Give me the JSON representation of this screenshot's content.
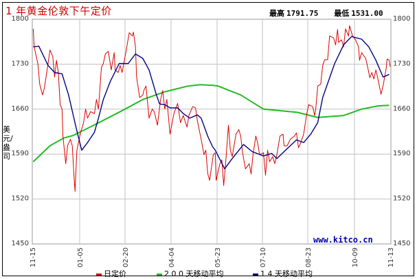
{
  "header": {
    "title": "1 年黄金伦敦下午定价",
    "high_label": "最高",
    "high_value": "1791.75",
    "low_label": "最低",
    "low_value": "1531.00"
  },
  "watermark": "www.kitco.cn",
  "chart_data": {
    "type": "line",
    "title": "1 年黄金伦敦下午定价",
    "ylabel": "美元/盎司",
    "xlabel": "",
    "ylim": [
      1450,
      1800
    ],
    "yticks": [
      "1800",
      "1730",
      "1660",
      "1590",
      "1520",
      "1450"
    ],
    "xticks": [
      "11-15",
      "01-05",
      "02-20",
      "04-04",
      "05-23",
      "07-10",
      "08-23",
      "10-09",
      "11-13"
    ],
    "grid": true,
    "legend_position": "bottom",
    "colors": {
      "daily": "#dd0000",
      "ma200": "#22bb22",
      "ma14": "#000080",
      "grid": "#c0c0c0"
    },
    "series": [
      {
        "name": "日定价",
        "key": "daily",
        "points": [
          [
            "11-16",
            1785
          ],
          [
            "11-17",
            1757
          ],
          [
            "11-21",
            1731
          ],
          [
            "11-23",
            1699
          ],
          [
            "11-26",
            1682
          ],
          [
            "11-28",
            1693
          ],
          [
            "12-02",
            1731
          ],
          [
            "12-04",
            1752
          ],
          [
            "12-07",
            1742
          ],
          [
            "12-09",
            1710
          ],
          [
            "12-11",
            1736
          ],
          [
            "12-13",
            1717
          ],
          [
            "12-15",
            1667
          ],
          [
            "12-17",
            1660
          ],
          [
            "12-18",
            1618
          ],
          [
            "12-21",
            1575
          ],
          [
            "12-23",
            1603
          ],
          [
            "12-26",
            1613
          ],
          [
            "12-28",
            1603
          ],
          [
            "12-30",
            1553
          ],
          [
            "12-31",
            1532
          ],
          [
            "01-02",
            1596
          ],
          [
            "01-04",
            1610
          ],
          [
            "01-06",
            1624
          ],
          [
            "01-09",
            1639
          ],
          [
            "01-11",
            1660
          ],
          [
            "01-13",
            1646
          ],
          [
            "01-16",
            1656
          ],
          [
            "01-20",
            1653
          ],
          [
            "01-22",
            1675
          ],
          [
            "01-24",
            1660
          ],
          [
            "01-27",
            1725
          ],
          [
            "01-29",
            1731
          ],
          [
            "01-31",
            1746
          ],
          [
            "02-03",
            1750
          ],
          [
            "02-05",
            1731
          ],
          [
            "02-06",
            1721
          ],
          [
            "02-09",
            1748
          ],
          [
            "02-10",
            1721
          ],
          [
            "02-13",
            1717
          ],
          [
            "02-15",
            1728
          ],
          [
            "02-17",
            1717
          ],
          [
            "02-21",
            1750
          ],
          [
            "02-24",
            1779
          ],
          [
            "02-27",
            1774
          ],
          [
            "02-28",
            1780
          ],
          [
            "03-01",
            1757
          ],
          [
            "03-02",
            1710
          ],
          [
            "03-05",
            1678
          ],
          [
            "03-08",
            1682
          ],
          [
            "03-09",
            1689
          ],
          [
            "03-11",
            1696
          ],
          [
            "03-14",
            1646
          ],
          [
            "03-17",
            1660
          ],
          [
            "03-19",
            1656
          ],
          [
            "03-22",
            1635
          ],
          [
            "03-25",
            1675
          ],
          [
            "03-27",
            1689
          ],
          [
            "03-29",
            1660
          ],
          [
            "03-31",
            1675
          ],
          [
            "04-03",
            1621
          ],
          [
            "04-07",
            1653
          ],
          [
            "04-11",
            1669
          ],
          [
            "04-14",
            1639
          ],
          [
            "04-17",
            1650
          ],
          [
            "04-21",
            1632
          ],
          [
            "04-23",
            1650
          ],
          [
            "04-27",
            1664
          ],
          [
            "04-30",
            1662
          ],
          [
            "05-02",
            1642
          ],
          [
            "05-06",
            1613
          ],
          [
            "05-09",
            1589
          ],
          [
            "05-11",
            1596
          ],
          [
            "05-13",
            1560
          ],
          [
            "05-15",
            1549
          ],
          [
            "05-19",
            1589
          ],
          [
            "05-21",
            1592
          ],
          [
            "05-22",
            1549
          ],
          [
            "05-26",
            1575
          ],
          [
            "05-28",
            1581
          ],
          [
            "05-30",
            1541
          ],
          [
            "06-01",
            1575
          ],
          [
            "06-04",
            1635
          ],
          [
            "06-06",
            1596
          ],
          [
            "06-08",
            1586
          ],
          [
            "06-12",
            1621
          ],
          [
            "06-15",
            1628
          ],
          [
            "06-17",
            1618
          ],
          [
            "06-19",
            1592
          ],
          [
            "06-22",
            1567
          ],
          [
            "06-26",
            1575
          ],
          [
            "06-28",
            1559
          ],
          [
            "06-30",
            1589
          ],
          [
            "07-03",
            1618
          ],
          [
            "07-05",
            1607
          ],
          [
            "07-07",
            1589
          ],
          [
            "07-11",
            1592
          ],
          [
            "07-13",
            1557
          ],
          [
            "07-15",
            1596
          ],
          [
            "07-17",
            1578
          ],
          [
            "07-20",
            1586
          ],
          [
            "07-22",
            1575
          ],
          [
            "07-24",
            1589
          ],
          [
            "07-27",
            1618
          ],
          [
            "07-30",
            1621
          ],
          [
            "07-31",
            1603
          ],
          [
            "08-03",
            1603
          ],
          [
            "08-06",
            1613
          ],
          [
            "08-10",
            1618
          ],
          [
            "08-12",
            1623
          ],
          [
            "08-14",
            1600
          ],
          [
            "08-16",
            1607
          ],
          [
            "08-19",
            1621
          ],
          [
            "08-22",
            1653
          ],
          [
            "08-24",
            1667
          ],
          [
            "08-28",
            1664
          ],
          [
            "08-30",
            1650
          ],
          [
            "08-31",
            1660
          ],
          [
            "09-02",
            1696
          ],
          [
            "09-05",
            1699
          ],
          [
            "09-07",
            1728
          ],
          [
            "09-09",
            1737
          ],
          [
            "09-12",
            1737
          ],
          [
            "09-14",
            1774
          ],
          [
            "09-18",
            1771
          ],
          [
            "09-20",
            1760
          ],
          [
            "09-22",
            1784
          ],
          [
            "09-23",
            1764
          ],
          [
            "09-26",
            1768
          ],
          [
            "09-28",
            1757
          ],
          [
            "09-30",
            1785
          ],
          [
            "10-03",
            1774
          ],
          [
            "10-04",
            1790
          ],
          [
            "10-07",
            1774
          ],
          [
            "10-10",
            1768
          ],
          [
            "10-13",
            1757
          ],
          [
            "10-14",
            1736
          ],
          [
            "10-16",
            1748
          ],
          [
            "10-20",
            1739
          ],
          [
            "10-22",
            1725
          ],
          [
            "10-24",
            1709
          ],
          [
            "10-26",
            1717
          ],
          [
            "10-28",
            1707
          ],
          [
            "10-30",
            1721
          ],
          [
            "11-02",
            1699
          ],
          [
            "11-04",
            1683
          ],
          [
            "11-06",
            1696
          ],
          [
            "11-09",
            1723
          ],
          [
            "11-10",
            1738
          ],
          [
            "11-12",
            1736
          ],
          [
            "11-13",
            1726
          ]
        ]
      },
      {
        "name": "2 0 0 天移动平均",
        "key": "ma200",
        "points": [
          [
            "11-16",
            1578
          ],
          [
            "12-04",
            1603
          ],
          [
            "12-19",
            1615
          ],
          [
            "12-29",
            1619
          ],
          [
            "01-22",
            1637
          ],
          [
            "02-20",
            1660
          ],
          [
            "03-08",
            1675
          ],
          [
            "03-29",
            1687
          ],
          [
            "04-22",
            1696
          ],
          [
            "05-05",
            1698
          ],
          [
            "05-19",
            1697
          ],
          [
            "05-24",
            1696
          ],
          [
            "06-17",
            1682
          ],
          [
            "07-11",
            1660
          ],
          [
            "08-13",
            1655
          ],
          [
            "09-02",
            1647
          ],
          [
            "09-28",
            1650
          ],
          [
            "10-16",
            1660
          ],
          [
            "11-01",
            1665
          ],
          [
            "11-12",
            1666
          ]
        ]
      },
      {
        "name": "1 4 天移动平均",
        "key": "ma14",
        "points": [
          [
            "11-16",
            1757
          ],
          [
            "11-22",
            1758
          ],
          [
            "12-02",
            1728
          ],
          [
            "12-09",
            1717
          ],
          [
            "12-17",
            1715
          ],
          [
            "12-24",
            1682
          ],
          [
            "01-01",
            1632
          ],
          [
            "01-07",
            1596
          ],
          [
            "01-13",
            1608
          ],
          [
            "01-20",
            1624
          ],
          [
            "01-24",
            1646
          ],
          [
            "01-29",
            1675
          ],
          [
            "02-05",
            1703
          ],
          [
            "02-14",
            1731
          ],
          [
            "02-23",
            1731
          ],
          [
            "03-01",
            1746
          ],
          [
            "03-08",
            1739
          ],
          [
            "03-14",
            1721
          ],
          [
            "03-21",
            1682
          ],
          [
            "03-24",
            1668
          ],
          [
            "03-29",
            1667
          ],
          [
            "04-03",
            1662
          ],
          [
            "04-11",
            1662
          ],
          [
            "04-17",
            1653
          ],
          [
            "04-24",
            1646
          ],
          [
            "05-02",
            1651
          ],
          [
            "05-06",
            1646
          ],
          [
            "05-13",
            1618
          ],
          [
            "05-18",
            1602
          ],
          [
            "05-21",
            1596
          ],
          [
            "05-31",
            1567
          ],
          [
            "06-07",
            1581
          ],
          [
            "06-20",
            1605
          ],
          [
            "06-29",
            1594
          ],
          [
            "07-11",
            1587
          ],
          [
            "07-19",
            1591
          ],
          [
            "07-24",
            1583
          ],
          [
            "08-02",
            1597
          ],
          [
            "08-12",
            1612
          ],
          [
            "08-19",
            1608
          ],
          [
            "08-26",
            1621
          ],
          [
            "09-02",
            1639
          ],
          [
            "09-07",
            1678
          ],
          [
            "09-19",
            1731
          ],
          [
            "09-28",
            1760
          ],
          [
            "10-06",
            1773
          ],
          [
            "10-16",
            1769
          ],
          [
            "10-23",
            1757
          ],
          [
            "10-30",
            1736
          ],
          [
            "11-06",
            1710
          ],
          [
            "11-12",
            1714
          ]
        ]
      }
    ]
  }
}
